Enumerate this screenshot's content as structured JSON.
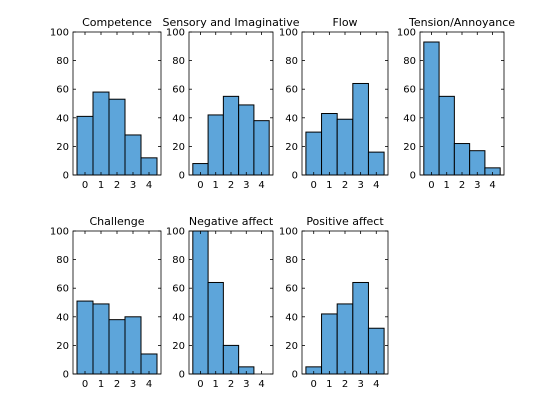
{
  "chart_data": [
    {
      "type": "bar",
      "title": "Competence",
      "categories": [
        "0",
        "1",
        "2",
        "3",
        "4"
      ],
      "values": [
        41,
        58,
        53,
        28,
        12
      ],
      "ylim": [
        0,
        100
      ],
      "yticks": [
        "0",
        "20",
        "40",
        "60",
        "80",
        "100"
      ],
      "bar_color": "#5DA5DA",
      "grid": false
    },
    {
      "type": "bar",
      "title": "Sensory and Imaginative",
      "categories": [
        "0",
        "1",
        "2",
        "3",
        "4"
      ],
      "values": [
        8,
        42,
        55,
        49,
        38
      ],
      "ylim": [
        0,
        100
      ],
      "yticks": [
        "0",
        "20",
        "40",
        "60",
        "80",
        "100"
      ],
      "bar_color": "#5DA5DA",
      "grid": false
    },
    {
      "type": "bar",
      "title": "Flow",
      "categories": [
        "0",
        "1",
        "2",
        "3",
        "4"
      ],
      "values": [
        30,
        43,
        39,
        64,
        16
      ],
      "ylim": [
        0,
        100
      ],
      "yticks": [
        "0",
        "20",
        "40",
        "60",
        "80",
        "100"
      ],
      "bar_color": "#5DA5DA",
      "grid": false
    },
    {
      "type": "bar",
      "title": "Tension/Annoyance",
      "categories": [
        "0",
        "1",
        "2",
        "3",
        "4"
      ],
      "values": [
        93,
        55,
        22,
        17,
        5
      ],
      "ylim": [
        0,
        100
      ],
      "yticks": [
        "0",
        "20",
        "40",
        "60",
        "80",
        "100"
      ],
      "bar_color": "#5DA5DA",
      "grid": false
    },
    {
      "type": "bar",
      "title": "Challenge",
      "categories": [
        "0",
        "1",
        "2",
        "3",
        "4"
      ],
      "values": [
        51,
        49,
        38,
        40,
        14
      ],
      "ylim": [
        0,
        100
      ],
      "yticks": [
        "0",
        "20",
        "40",
        "60",
        "80",
        "100"
      ],
      "bar_color": "#5DA5DA",
      "grid": false
    },
    {
      "type": "bar",
      "title": "Negative affect",
      "categories": [
        "0",
        "1",
        "2",
        "3",
        "4"
      ],
      "values": [
        101,
        64,
        20,
        5,
        0
      ],
      "ylim": [
        0,
        100
      ],
      "yticks": [
        "0",
        "20",
        "40",
        "60",
        "80",
        "100"
      ],
      "bar_color": "#5DA5DA",
      "grid": false
    },
    {
      "type": "bar",
      "title": "Positive affect",
      "categories": [
        "0",
        "1",
        "2",
        "3",
        "4"
      ],
      "values": [
        5,
        42,
        49,
        64,
        32
      ],
      "ylim": [
        0,
        100
      ],
      "yticks": [
        "0",
        "20",
        "40",
        "60",
        "80",
        "100"
      ],
      "bar_color": "#5DA5DA",
      "grid": false
    }
  ]
}
